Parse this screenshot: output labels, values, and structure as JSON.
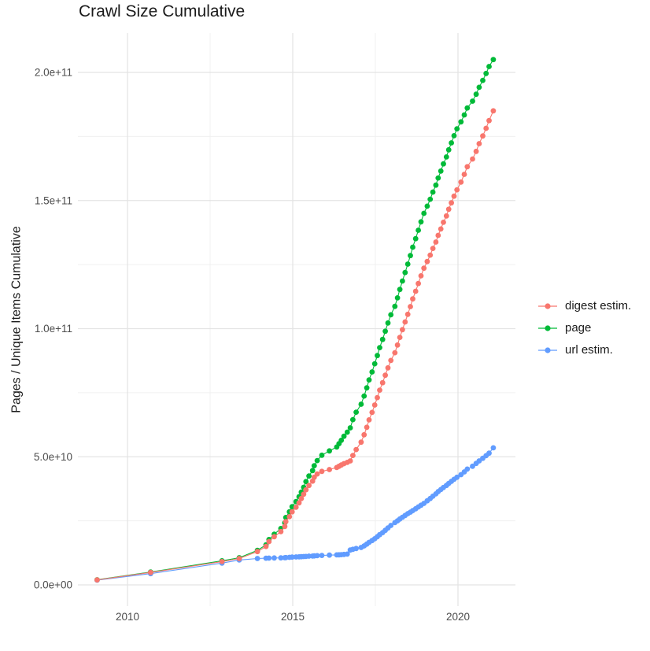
{
  "chart_data": {
    "type": "scatter",
    "title": "Crawl Size Cumulative",
    "xlabel": "",
    "ylabel": "Pages / Unique Items Cumulative",
    "legend_position": "right",
    "grid": true,
    "background": "#ffffff",
    "y_unit": "items (y values given in billions, 1e9)",
    "xlim": [
      2008.5,
      2021.7
    ],
    "ylim": [
      0,
      216000000000
    ],
    "xticks": [
      {
        "value": 2010,
        "label": "2010"
      },
      {
        "value": 2015,
        "label": "2015"
      },
      {
        "value": 2020,
        "label": "2020"
      }
    ],
    "x_minor": [
      2012.5,
      2017.5
    ],
    "yticks": [
      {
        "value_e9": 0,
        "label": "0.0e+00"
      },
      {
        "value_e9": 50,
        "label": "5.0e+10"
      },
      {
        "value_e9": 100,
        "label": "1.0e+11"
      },
      {
        "value_e9": 150,
        "label": "1.5e+11"
      },
      {
        "value_e9": 200,
        "label": "2.0e+11"
      }
    ],
    "y_minor_e9": [
      25,
      75,
      125,
      175
    ],
    "x_shared": [
      2009.08,
      2010.7,
      2012.86,
      2013.38,
      2013.93,
      2014.19,
      2014.28,
      2014.44,
      2014.64,
      2014.76,
      2014.79,
      2014.9,
      2014.98,
      2015.1,
      2015.19,
      2015.26,
      2015.33,
      2015.4,
      2015.49,
      2015.6,
      2015.65,
      2015.74,
      2015.88,
      2016.11,
      2016.33,
      2016.4,
      2016.47,
      2016.55,
      2016.65,
      2016.74,
      2016.82,
      2016.92,
      2017.07,
      2017.16,
      2017.24,
      2017.31,
      2017.4,
      2017.48,
      2017.56,
      2017.63,
      2017.72,
      2017.8,
      2017.88,
      2017.97,
      2018.09,
      2018.17,
      2018.24,
      2018.32,
      2018.4,
      2018.48,
      2018.56,
      2018.63,
      2018.72,
      2018.8,
      2018.88,
      2018.97,
      2019.07,
      2019.16,
      2019.24,
      2019.33,
      2019.4,
      2019.48,
      2019.56,
      2019.65,
      2019.72,
      2019.8,
      2019.88,
      2019.97,
      2020.09,
      2020.19,
      2020.28,
      2020.44,
      2020.55,
      2020.64,
      2020.75,
      2020.85,
      2020.94,
      2021.07
    ],
    "series": [
      {
        "name": "digest estim.",
        "color": "#F8766D",
        "y_e9": [
          1.95,
          4.85,
          9.1,
          10.3,
          13.0,
          15.0,
          16.9,
          18.8,
          20.8,
          22.8,
          24.7,
          26.6,
          28.5,
          30.3,
          32.0,
          33.7,
          35.4,
          37.1,
          38.8,
          40.5,
          42.0,
          43.3,
          44.3,
          45.0,
          45.8,
          46.3,
          46.8,
          47.3,
          47.8,
          48.4,
          50.5,
          52.8,
          55.7,
          58.6,
          61.5,
          64.4,
          67.3,
          70.2,
          73.1,
          76.0,
          78.9,
          81.8,
          84.7,
          87.6,
          90.6,
          93.6,
          96.6,
          99.6,
          102.6,
          105.6,
          108.6,
          111.6,
          114.6,
          117.6,
          120.6,
          123.6,
          126.2,
          128.7,
          131.3,
          133.8,
          136.4,
          138.9,
          141.5,
          144.0,
          146.6,
          149.1,
          151.7,
          154.2,
          157.2,
          160.2,
          163.2,
          166.2,
          169.2,
          172.2,
          175.2,
          178.2,
          181.2,
          185.0
        ]
      },
      {
        "name": "page",
        "color": "#00BA38",
        "y_e9": [
          2.0,
          5.0,
          9.4,
          10.6,
          13.5,
          15.6,
          17.7,
          19.8,
          22.0,
          24.2,
          26.3,
          28.5,
          30.5,
          32.5,
          34.4,
          36.2,
          38.1,
          40.3,
          42.5,
          44.6,
          46.5,
          48.5,
          50.6,
          52.3,
          53.8,
          55.1,
          56.4,
          58.0,
          59.6,
          61.3,
          64.5,
          67.4,
          70.5,
          73.7,
          76.9,
          80.0,
          83.1,
          86.3,
          89.5,
          92.6,
          95.8,
          99.0,
          102.2,
          105.4,
          108.7,
          112.0,
          115.3,
          118.6,
          121.9,
          125.2,
          128.5,
          131.8,
          135.1,
          138.4,
          141.7,
          145.0,
          147.8,
          150.5,
          153.3,
          156.0,
          158.8,
          161.5,
          164.3,
          167.0,
          169.8,
          172.5,
          175.3,
          178.0,
          180.7,
          183.4,
          186.1,
          188.8,
          191.5,
          194.2,
          196.9,
          199.6,
          202.3,
          205.0
        ]
      },
      {
        "name": "url estim.",
        "color": "#619CFF",
        "y_e9": [
          1.85,
          4.4,
          8.5,
          9.7,
          10.3,
          10.4,
          10.45,
          10.5,
          10.55,
          10.6,
          10.65,
          10.75,
          10.85,
          10.9,
          10.95,
          11.0,
          11.05,
          11.1,
          11.2,
          11.25,
          11.3,
          11.4,
          11.5,
          11.6,
          11.7,
          11.75,
          11.8,
          11.9,
          12.0,
          13.6,
          13.9,
          14.2,
          14.6,
          15.2,
          15.9,
          16.6,
          17.3,
          18.0,
          18.8,
          19.6,
          20.4,
          21.3,
          22.2,
          23.2,
          24.3,
          25.0,
          25.7,
          26.4,
          27.1,
          27.8,
          28.4,
          29.0,
          29.7,
          30.4,
          31.1,
          31.8,
          32.8,
          33.7,
          34.6,
          35.5,
          36.4,
          37.2,
          38.0,
          38.8,
          39.6,
          40.4,
          41.2,
          42.0,
          43.0,
          44.1,
          45.2,
          46.3,
          47.4,
          48.4,
          49.4,
          50.4,
          51.4,
          53.5
        ]
      }
    ],
    "draw_order": [
      2,
      1,
      0
    ]
  }
}
